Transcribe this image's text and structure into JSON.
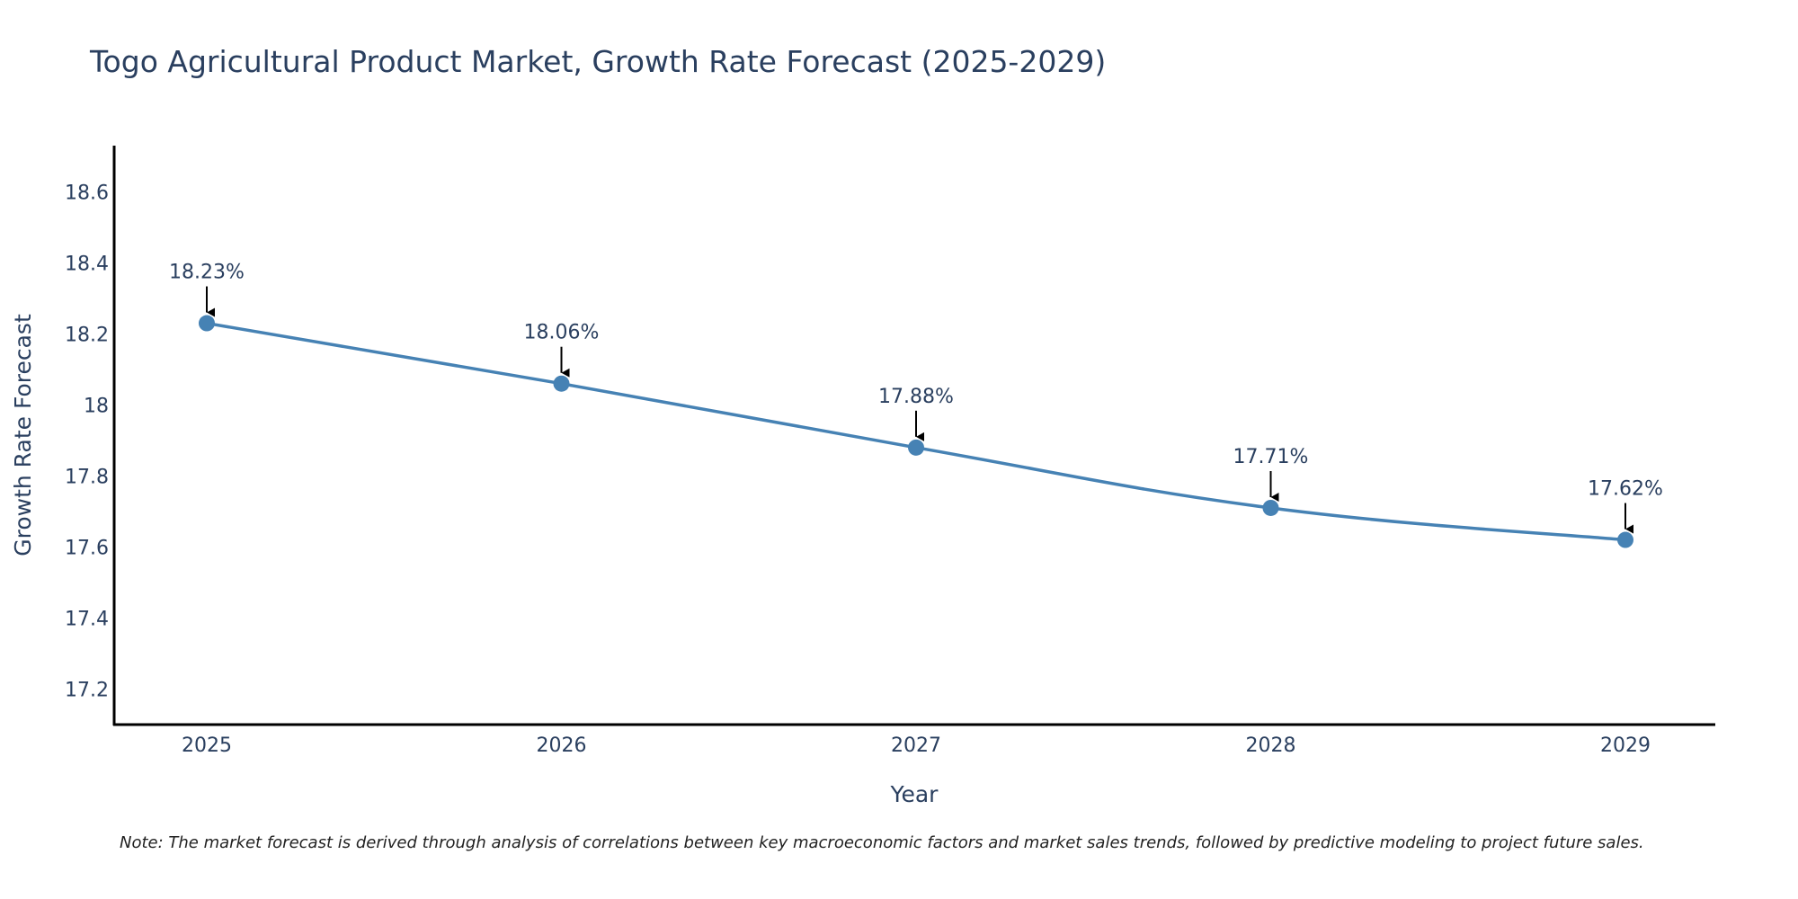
{
  "chart_data": {
    "type": "line",
    "title": "Togo Agricultural Product Market, Growth Rate Forecast (2025-2029)",
    "xlabel": "Year",
    "ylabel": "Growth Rate Forecast",
    "categories": [
      "2025",
      "2026",
      "2027",
      "2028",
      "2029"
    ],
    "values": [
      18.23,
      18.06,
      17.88,
      17.71,
      17.62
    ],
    "data_labels": [
      "18.23%",
      "18.06%",
      "17.88%",
      "17.71%",
      "17.62%"
    ],
    "yticks": [
      "17.2",
      "17.4",
      "17.6",
      "17.8",
      "18",
      "18.2",
      "18.4",
      "18.6"
    ],
    "ytick_values": [
      17.2,
      17.4,
      17.6,
      17.8,
      18.0,
      18.2,
      18.4,
      18.6
    ],
    "ylim": [
      17.1,
      18.73
    ],
    "grid": false,
    "line_color": "#4682b4",
    "note": "Note: The market forecast is derived through analysis of correlations between key macroeconomic factors and market sales trends, followed by predictive modeling to project future sales."
  }
}
